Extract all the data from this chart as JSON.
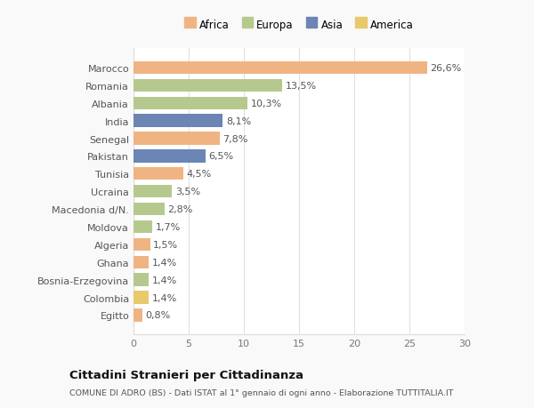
{
  "categories": [
    "Marocco",
    "Romania",
    "Albania",
    "India",
    "Senegal",
    "Pakistan",
    "Tunisia",
    "Ucraina",
    "Macedonia d/N.",
    "Moldova",
    "Algeria",
    "Ghana",
    "Bosnia-Erzegovina",
    "Colombia",
    "Egitto"
  ],
  "values": [
    26.6,
    13.5,
    10.3,
    8.1,
    7.8,
    6.5,
    4.5,
    3.5,
    2.8,
    1.7,
    1.5,
    1.4,
    1.4,
    1.4,
    0.8
  ],
  "labels": [
    "26,6%",
    "13,5%",
    "10,3%",
    "8,1%",
    "7,8%",
    "6,5%",
    "4,5%",
    "3,5%",
    "2,8%",
    "1,7%",
    "1,5%",
    "1,4%",
    "1,4%",
    "1,4%",
    "0,8%"
  ],
  "colors": [
    "#f0b482",
    "#b5c98e",
    "#b5c98e",
    "#6b85b5",
    "#f0b482",
    "#6b85b5",
    "#f0b482",
    "#b5c98e",
    "#b5c98e",
    "#b5c98e",
    "#f0b482",
    "#f0b482",
    "#b5c98e",
    "#e8c96b",
    "#f0b482"
  ],
  "legend_labels": [
    "Africa",
    "Europa",
    "Asia",
    "America"
  ],
  "legend_colors": [
    "#f0b482",
    "#b5c98e",
    "#6b85b5",
    "#e8c96b"
  ],
  "title": "Cittadini Stranieri per Cittadinanza",
  "subtitle": "COMUNE DI ADRO (BS) - Dati ISTAT al 1° gennaio di ogni anno - Elaborazione TUTTITALIA.IT",
  "xlim": [
    0,
    30
  ],
  "xticks": [
    0,
    5,
    10,
    15,
    20,
    25,
    30
  ],
  "bg_color": "#f9f9f9",
  "plot_bg_color": "#ffffff",
  "grid_color": "#e0e0e0",
  "bar_height": 0.72,
  "label_fontsize": 8,
  "tick_fontsize": 8,
  "ytick_fontsize": 8
}
